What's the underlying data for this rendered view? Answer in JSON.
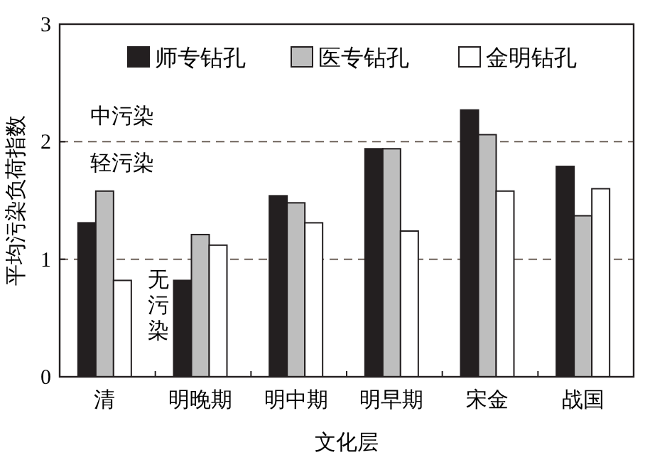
{
  "chart_data": {
    "type": "bar",
    "ylabel": "平均污染负荷指数",
    "xlabel": "文化层",
    "categories": [
      "清",
      "明晚期",
      "明中期",
      "明早期",
      "宋金",
      "战国"
    ],
    "series": [
      {
        "name": "师专钻孔",
        "color": "#231f20",
        "values": [
          1.31,
          0.82,
          1.54,
          1.94,
          2.27,
          1.79
        ]
      },
      {
        "name": "医专钻孔",
        "color": "#bebebe",
        "values": [
          1.58,
          1.21,
          1.48,
          1.94,
          2.06,
          1.37
        ]
      },
      {
        "name": "金明钻孔",
        "color": "#ffffff",
        "values": [
          0.82,
          1.12,
          1.31,
          1.24,
          1.58,
          1.6
        ]
      }
    ],
    "ylim": [
      0,
      3
    ],
    "yticks": [
      0,
      1,
      2,
      3
    ],
    "grid": false,
    "legend": "top",
    "ref_lines": [
      {
        "axis": "y",
        "value": 1,
        "line_style": "dashed",
        "color": "#6e625a"
      },
      {
        "axis": "y",
        "value": 2,
        "line_style": "dashed",
        "color": "#6e625a"
      }
    ],
    "annotations": [
      "中污染",
      "轻污染",
      "无污染"
    ]
  }
}
